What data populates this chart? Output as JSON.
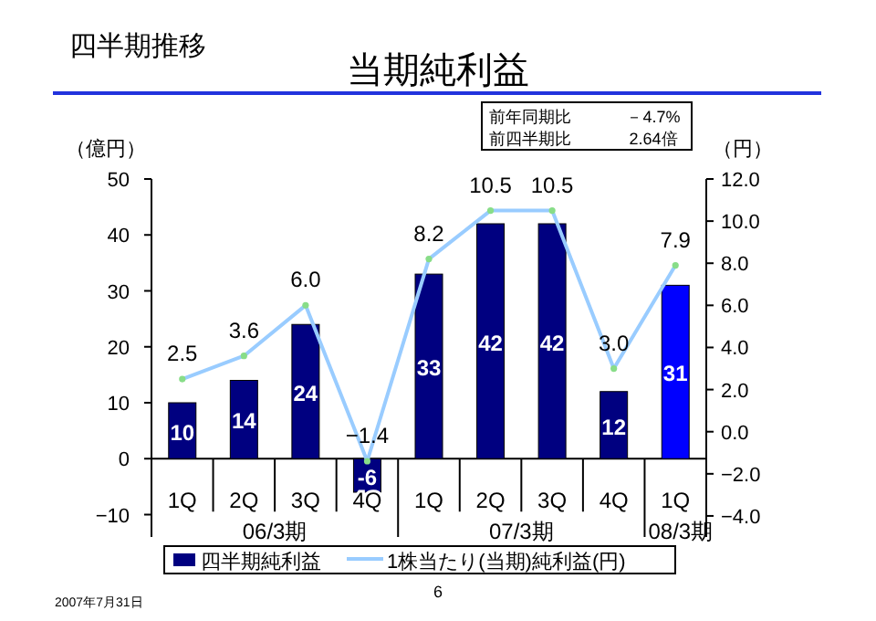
{
  "chart_data": {
    "type": "bar",
    "title": "当期純利益",
    "subtitle": "四半期推移",
    "ylabel": "（億円）",
    "y2label": "（円）",
    "categories": [
      "1Q",
      "2Q",
      "3Q",
      "4Q",
      "1Q",
      "2Q",
      "3Q",
      "4Q",
      "1Q"
    ],
    "series": [
      {
        "name": "四半期純利益",
        "colors": [
          "#000080",
          "#000080",
          "#000080",
          "#000080",
          "#000080",
          "#000080",
          "#000080",
          "#000080",
          "#0000ff"
        ],
        "values": [
          10,
          14,
          24,
          -6,
          33,
          42,
          42,
          12,
          31
        ]
      },
      {
        "name": "1株当たり(当期)純利益(円)",
        "type": "line",
        "axis": "y2",
        "color": "#99ccff",
        "marker": "circle",
        "values": [
          2.5,
          3.6,
          6.0,
          -1.4,
          8.2,
          10.5,
          10.5,
          3.0,
          7.9
        ],
        "value_labels": [
          "2.5",
          "3.6",
          "6.0",
          "−1.4",
          "8.2",
          "10.5",
          "10.5",
          "3.0",
          "7.9"
        ]
      }
    ],
    "ylim": [
      -14,
      50
    ],
    "yticks": [
      {
        "value": -10,
        "label": "−10"
      },
      0,
      10,
      20,
      30,
      40,
      50
    ],
    "y2lim": [
      -5,
      12
    ],
    "y2ticks": [
      {
        "value": -4,
        "label": "−4.0"
      },
      {
        "value": -2,
        "label": "−2.0"
      },
      {
        "value": 0,
        "label": "0.0"
      },
      {
        "value": 2,
        "label": "2.0"
      },
      {
        "value": 4,
        "label": "4.0"
      },
      {
        "value": 6,
        "label": "6.0"
      },
      {
        "value": 8,
        "label": "8.0"
      },
      {
        "value": 10,
        "label": "10.0"
      },
      {
        "value": 12,
        "label": "12.0"
      }
    ],
    "data_labels": true,
    "legend": "bottom",
    "grid": false,
    "annotations": [
      "06/3期",
      "07/3期",
      "08/3期",
      "前年同期比　－4.7%",
      "前四半期比　2.64倍",
      "6",
      "2007年7月31日"
    ]
  }
}
